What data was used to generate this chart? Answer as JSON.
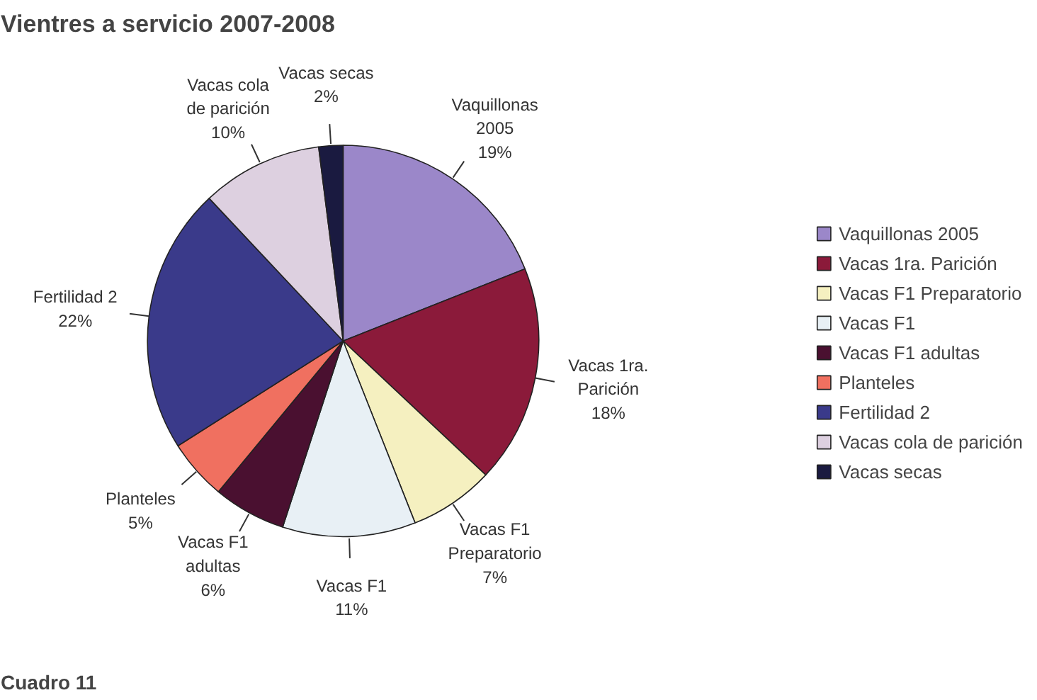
{
  "chart_data": {
    "type": "pie",
    "title": "Vientres a servicio 2007-2008",
    "categories": [
      "Vaquillonas 2005",
      "Vacas 1ra. Parición",
      "Vacas F1 Preparatorio",
      "Vacas F1",
      "Vacas F1 adultas",
      "Planteles",
      "Fertilidad 2",
      "Vacas cola de parición",
      "Vacas secas"
    ],
    "values": [
      19,
      18,
      7,
      11,
      6,
      5,
      22,
      10,
      2
    ],
    "colors": [
      "#9b87c9",
      "#8b1a3a",
      "#f5f0c0",
      "#e8f0f5",
      "#4a1030",
      "#f07060",
      "#3a3a8a",
      "#ddd0e0",
      "#1a1a40"
    ],
    "value_labels": [
      "19%",
      "18%",
      "7%",
      "11%",
      "6%",
      "5%",
      "22%",
      "10%",
      "2%"
    ],
    "legend": "right",
    "annotations": [
      "Cuadro 11"
    ]
  }
}
